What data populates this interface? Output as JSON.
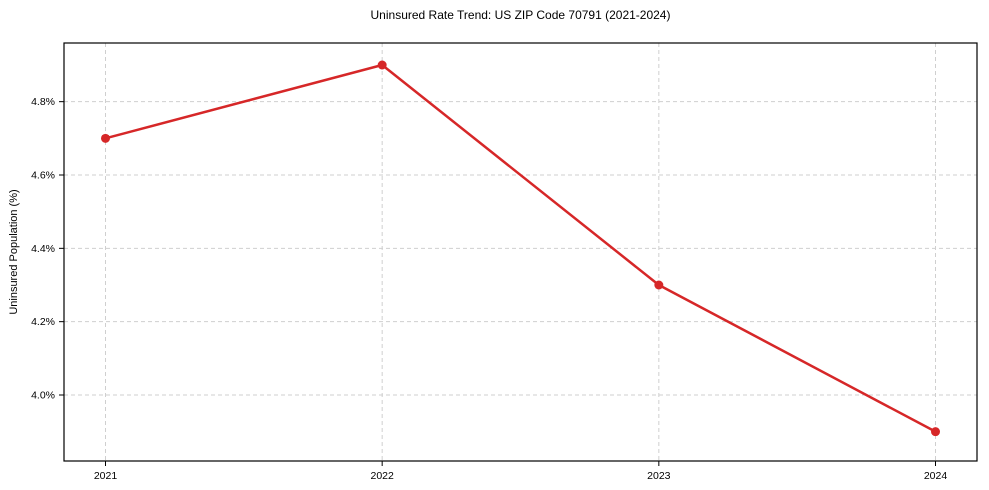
{
  "chart_data": {
    "type": "line",
    "title": "Uninsured Rate Trend: US ZIP Code 70791 (2021-2024)",
    "xlabel": "",
    "ylabel": "Uninsured Population (%)",
    "x": [
      2021,
      2022,
      2023,
      2024
    ],
    "x_tick_labels": [
      "2021",
      "2022",
      "2023",
      "2024"
    ],
    "y_ticks": [
      4.0,
      4.2,
      4.4,
      4.6,
      4.8
    ],
    "y_tick_labels": [
      "4.0%",
      "4.2%",
      "4.4%",
      "4.6%",
      "4.8%"
    ],
    "series": [
      {
        "name": "uninsured-rate",
        "values": [
          4.7,
          4.9,
          4.3,
          3.9
        ],
        "color": "#d62728",
        "marker": "circle"
      }
    ],
    "xlim": [
      2020.85,
      2024.15
    ],
    "ylim": [
      3.82,
      4.96
    ],
    "grid": true,
    "grid_color": "#cfcfcf",
    "axis_color": "#000000",
    "background_color": "#ffffff",
    "legend_position": "none"
  }
}
